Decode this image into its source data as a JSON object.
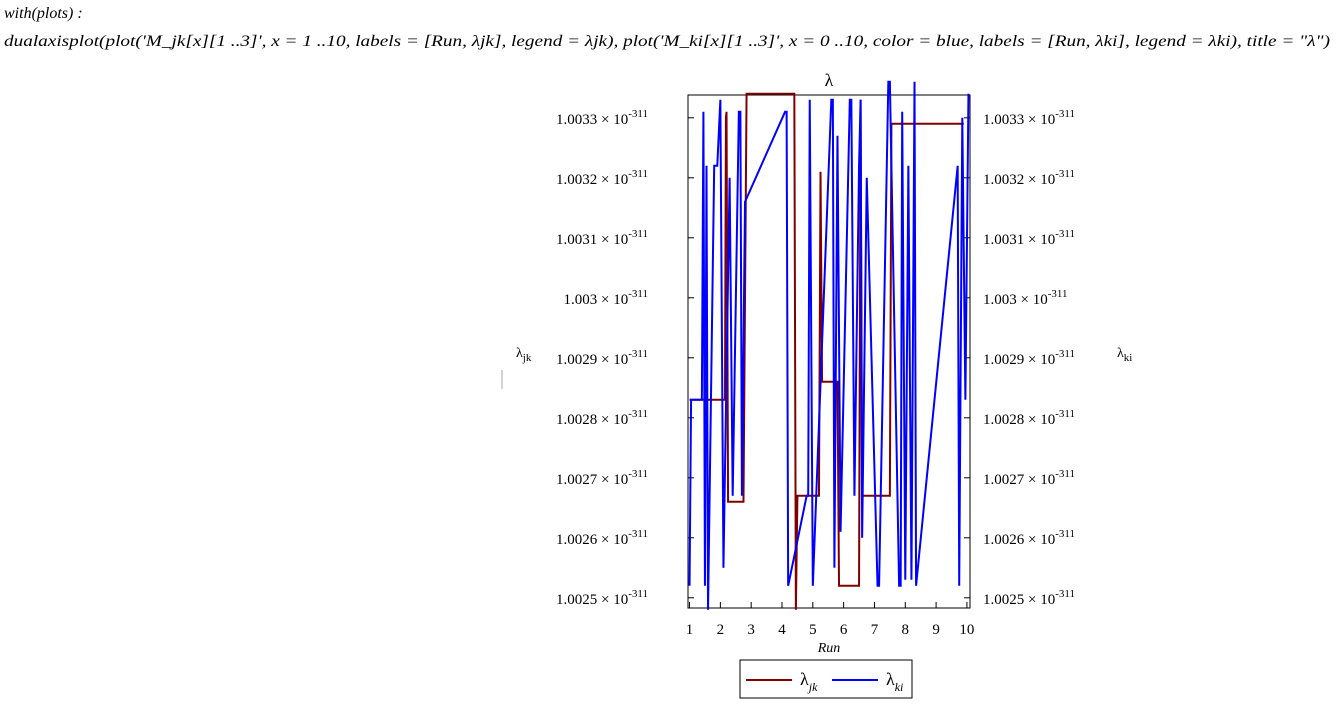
{
  "input_lines": [
    "with(plots) :",
    "dualaxisplot(plot('M_jk[x][1 ..3]', x = 1 ..10, labels = [Run, λjk], legend = λjk), plot('M_ki[x][1 ..3]', x = 0 ..10, color = blue, labels = [Run, λki], legend = λki), title = \"λ\")"
  ],
  "chart_data": {
    "type": "line",
    "title": "λ",
    "xlabel": "Run",
    "ylabel": "λ",
    "ylabel_sub": "jk",
    "y2label": "λ",
    "y2label_sub": "ki",
    "xlim": [
      0.95,
      10.1
    ],
    "xticks": [
      1,
      2,
      3,
      4,
      5,
      6,
      7,
      8,
      9,
      10
    ],
    "ylim": [
      1.002483e-311,
      1.003338e-311
    ],
    "yticks": [
      {
        "value": 1.0025e-311,
        "label": "1.0025 × 10",
        "exponent": "-311"
      },
      {
        "value": 1.0026e-311,
        "label": "1.0026 × 10",
        "exponent": "-311"
      },
      {
        "value": 1.0027e-311,
        "label": "1.0027 × 10",
        "exponent": "-311"
      },
      {
        "value": 1.0028e-311,
        "label": "1.0028 × 10",
        "exponent": "-311"
      },
      {
        "value": 1.0029e-311,
        "label": "1.0029 × 10",
        "exponent": "-311"
      },
      {
        "value": 1.003e-311,
        "label": "1.003 × 10",
        "exponent": "-311"
      },
      {
        "value": 1.0031e-311,
        "label": "1.0031 × 10",
        "exponent": "-311"
      },
      {
        "value": 1.0032e-311,
        "label": "1.0032 × 10",
        "exponent": "-311"
      },
      {
        "value": 1.0033e-311,
        "label": "1.0033 × 10",
        "exponent": "-311"
      }
    ],
    "y2lim": [
      1.002483e-311,
      1.003338e-311
    ],
    "y2ticks": [
      {
        "value": 1.0025e-311,
        "label": "1.0025 × 10",
        "exponent": "-311"
      },
      {
        "value": 1.0026e-311,
        "label": "1.0026 × 10",
        "exponent": "-311"
      },
      {
        "value": 1.0027e-311,
        "label": "1.0027 × 10",
        "exponent": "-311"
      },
      {
        "value": 1.0028e-311,
        "label": "1.0028 × 10",
        "exponent": "-311"
      },
      {
        "value": 1.0029e-311,
        "label": "1.0029 × 10",
        "exponent": "-311"
      },
      {
        "value": 1.003e-311,
        "label": "1.003 × 10",
        "exponent": "-311"
      },
      {
        "value": 1.0031e-311,
        "label": "1.0031 × 10",
        "exponent": "-311"
      },
      {
        "value": 1.0032e-311,
        "label": "1.0032 × 10",
        "exponent": "-311"
      },
      {
        "value": 1.0033e-311,
        "label": "1.0033 × 10",
        "exponent": "-311"
      }
    ],
    "series": [
      {
        "name": "λ",
        "name_sub": "jk",
        "color": "#7f0000",
        "x": [
          1.0,
          2.15,
          2.18,
          2.2,
          2.25,
          2.75,
          2.85,
          4.4,
          4.45,
          4.5,
          5.2,
          5.25,
          5.3,
          5.8,
          5.85,
          6.5,
          6.55,
          6.6,
          7.5,
          7.55,
          9.9
        ],
        "values": [
          1.00283e-311,
          1.00283e-311,
          1.0033e-311,
          1.00331e-311,
          1.00266e-311,
          1.00266e-311,
          1.00334e-311,
          1.00334e-311,
          1.00248e-311,
          1.00267e-311,
          1.00267e-311,
          1.00321e-311,
          1.00286e-311,
          1.00286e-311,
          1.00252e-311,
          1.00252e-311,
          1.00333e-311,
          1.00267e-311,
          1.00267e-311,
          1.00329e-311,
          1.00329e-311
        ]
      },
      {
        "name": "λ",
        "name_sub": "ki",
        "color": "#0000ff",
        "axis": "y2",
        "x": [
          1.0,
          1.05,
          1.4,
          1.45,
          1.5,
          1.55,
          1.6,
          1.8,
          1.9,
          2.0,
          2.1,
          2.3,
          2.4,
          2.6,
          2.65,
          2.7,
          2.8,
          4.1,
          4.15,
          4.2,
          4.8,
          4.85,
          4.9,
          5.0,
          5.6,
          5.65,
          5.7,
          5.8,
          5.9,
          6.2,
          6.25,
          6.35,
          6.5,
          6.55,
          6.6,
          6.75,
          7.1,
          7.15,
          7.45,
          7.5,
          7.8,
          7.85,
          7.9,
          8.0,
          8.1,
          8.2,
          8.3,
          8.35,
          9.7,
          9.75,
          9.85,
          9.95,
          10.05
        ],
        "values": [
          1.00252e-311,
          1.00283e-311,
          1.00283e-311,
          1.00331e-311,
          1.00252e-311,
          1.00322e-311,
          1.00248e-311,
          1.00322e-311,
          1.00322e-311,
          1.00333e-311,
          1.00255e-311,
          1.0032e-311,
          1.00267e-311,
          1.00331e-311,
          1.00331e-311,
          1.00267e-311,
          1.00316e-311,
          1.00331e-311,
          1.00331e-311,
          1.00252e-311,
          1.00267e-311,
          1.00267e-311,
          1.00333e-311,
          1.00252e-311,
          1.00333e-311,
          1.00333e-311,
          1.00255e-311,
          1.00327e-311,
          1.00261e-311,
          1.00333e-311,
          1.00333e-311,
          1.00267e-311,
          1.00322e-311,
          1.00333e-311,
          1.0026e-311,
          1.0032e-311,
          1.00252e-311,
          1.00252e-311,
          1.00336e-311,
          1.00336e-311,
          1.00252e-311,
          1.00252e-311,
          1.00331e-311,
          1.00253e-311,
          1.00322e-311,
          1.00253e-311,
          1.00336e-311,
          1.00252e-311,
          1.00322e-311,
          1.00252e-311,
          1.0033e-311,
          1.00283e-311,
          1.00334e-311
        ]
      }
    ]
  }
}
